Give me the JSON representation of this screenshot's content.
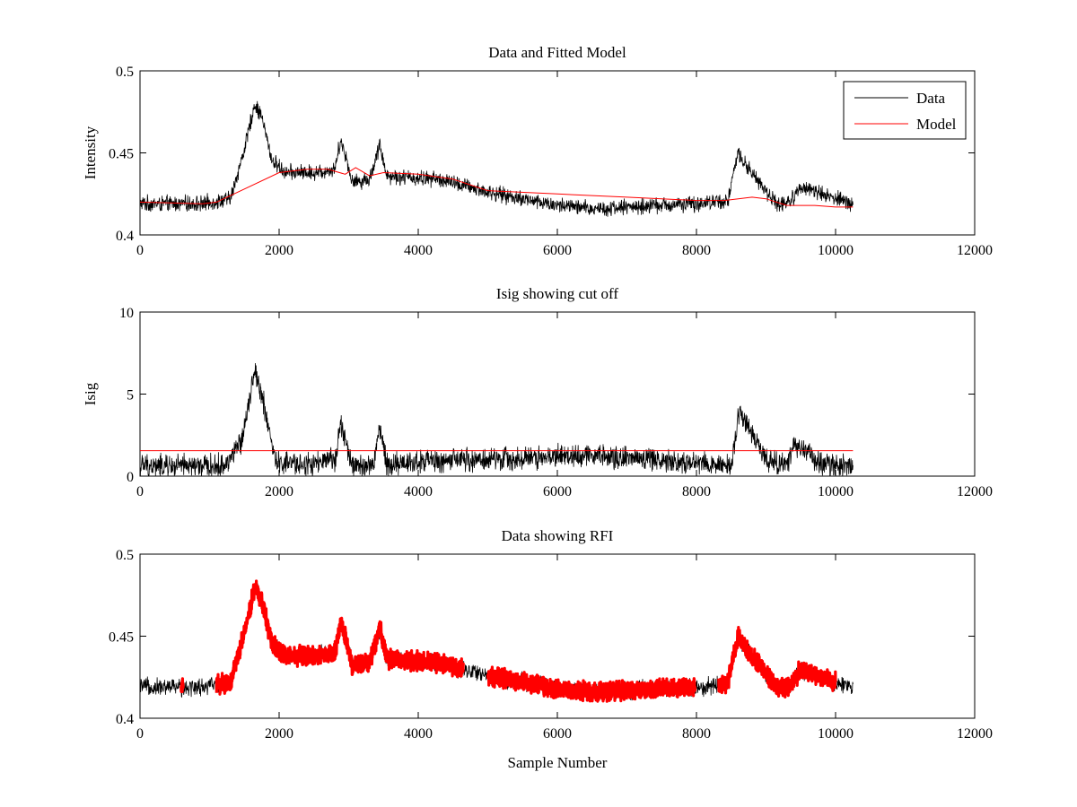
{
  "chart_data": [
    {
      "type": "line",
      "title": "Data and Fitted Model",
      "xlabel": "",
      "ylabel": "Intensity",
      "xlim": [
        0,
        12000
      ],
      "ylim": [
        0.4,
        0.5
      ],
      "xticks": [
        "0",
        "2000",
        "4000",
        "6000",
        "8000",
        "10000",
        "12000"
      ],
      "yticks": [
        "0.4",
        "0.45",
        "0.5"
      ],
      "grid": false,
      "legend": "top-right",
      "series": [
        {
          "name": "Data",
          "color": "#000000",
          "x_range": [
            0,
            10250
          ],
          "noise": 0.004,
          "x": [
            0,
            900,
            1300,
            1500,
            1650,
            1750,
            1900,
            2100,
            2500,
            2800,
            2880,
            2960,
            3050,
            3300,
            3450,
            3550,
            3800,
            4300,
            5000,
            6000,
            6500,
            7000,
            8000,
            8450,
            8600,
            8750,
            8950,
            9150,
            9350,
            9500,
            9800,
            10250
          ],
          "y": [
            0.419,
            0.419,
            0.422,
            0.452,
            0.48,
            0.472,
            0.445,
            0.438,
            0.438,
            0.44,
            0.458,
            0.448,
            0.432,
            0.434,
            0.455,
            0.436,
            0.435,
            0.434,
            0.426,
            0.418,
            0.416,
            0.417,
            0.419,
            0.421,
            0.45,
            0.44,
            0.43,
            0.419,
            0.42,
            0.43,
            0.425,
            0.419
          ]
        },
        {
          "name": "Model",
          "color": "#ff0000",
          "x_range": [
            0,
            10250
          ],
          "x": [
            0,
            900,
            1100,
            1500,
            2000,
            2400,
            2700,
            2950,
            3100,
            3300,
            3500,
            4000,
            4500,
            5000,
            6000,
            7000,
            8000,
            8400,
            8800,
            9000,
            9300,
            9700,
            10000,
            10250
          ],
          "y": [
            0.42,
            0.419,
            0.42,
            0.428,
            0.438,
            0.44,
            0.44,
            0.437,
            0.441,
            0.436,
            0.438,
            0.437,
            0.434,
            0.427,
            0.425,
            0.423,
            0.421,
            0.421,
            0.423,
            0.422,
            0.418,
            0.418,
            0.417,
            0.417
          ]
        }
      ]
    },
    {
      "type": "line",
      "title": "Isig showing cut off",
      "xlabel": "",
      "ylabel": "Isig",
      "xlim": [
        0,
        12000
      ],
      "ylim": [
        0,
        10
      ],
      "xticks": [
        "0",
        "2000",
        "4000",
        "6000",
        "8000",
        "10000",
        "12000"
      ],
      "yticks": [
        "0",
        "5",
        "10"
      ],
      "grid": false,
      "series": [
        {
          "color": "#000000",
          "x_range": [
            0,
            10250
          ],
          "noise": 0.6,
          "x": [
            0,
            1200,
            1450,
            1650,
            1750,
            1950,
            2500,
            2800,
            2880,
            2960,
            3050,
            3350,
            3450,
            3550,
            4000,
            5000,
            6000,
            6500,
            7500,
            8400,
            8500,
            8620,
            8800,
            9000,
            9300,
            9400,
            9600,
            9800,
            10250
          ],
          "y": [
            0.6,
            0.6,
            2.0,
            6.5,
            5.0,
            0.8,
            0.7,
            1.0,
            3.2,
            2.0,
            0.6,
            0.6,
            3.0,
            0.7,
            0.9,
            1.0,
            1.2,
            1.3,
            1.0,
            0.7,
            0.7,
            4.0,
            2.5,
            1.0,
            0.6,
            1.8,
            1.5,
            0.7,
            0.6
          ]
        },
        {
          "color": "#ff0000",
          "x": [
            0,
            10250
          ],
          "y": [
            1.55,
            1.55
          ]
        }
      ]
    },
    {
      "type": "line",
      "title": "Data showing RFI",
      "xlabel": "Sample Number",
      "ylabel": "",
      "xlim": [
        0,
        12000
      ],
      "ylim": [
        0.4,
        0.5
      ],
      "xticks": [
        "0",
        "2000",
        "4000",
        "6000",
        "8000",
        "10000",
        "12000"
      ],
      "yticks": [
        "0.4",
        "0.45",
        "0.5"
      ],
      "grid": false,
      "series": [
        {
          "color": "#000000",
          "x_range": [
            0,
            10250
          ],
          "noise": 0.0045,
          "x": [
            0,
            900,
            1300,
            1500,
            1650,
            1750,
            1900,
            2100,
            2500,
            2800,
            2880,
            2960,
            3050,
            3300,
            3450,
            3550,
            3800,
            4300,
            5000,
            6000,
            6500,
            7000,
            8000,
            8450,
            8600,
            8750,
            8950,
            9150,
            9350,
            9500,
            9800,
            10250
          ],
          "y": [
            0.419,
            0.419,
            0.422,
            0.452,
            0.48,
            0.472,
            0.445,
            0.438,
            0.438,
            0.44,
            0.458,
            0.448,
            0.432,
            0.434,
            0.455,
            0.436,
            0.435,
            0.434,
            0.426,
            0.418,
            0.416,
            0.417,
            0.419,
            0.421,
            0.45,
            0.44,
            0.43,
            0.419,
            0.42,
            0.43,
            0.425,
            0.419
          ]
        },
        {
          "color": "#ff0000",
          "marker": "dot",
          "segments": [
            [
              590,
              620
            ],
            [
              1100,
              4650
            ],
            [
              5000,
              7980
            ],
            [
              8320,
              10000
            ]
          ]
        }
      ]
    }
  ]
}
